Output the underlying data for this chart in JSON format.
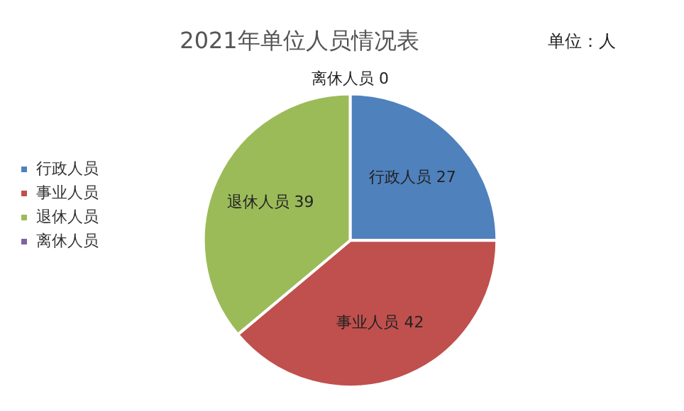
{
  "chart_data": {
    "type": "pie",
    "title": "2021年单位人员情况表",
    "annotations": [
      "单位：人"
    ],
    "categories": [
      "行政人员",
      "事业人员",
      "退休人员",
      "离休人员"
    ],
    "values": [
      27,
      42,
      39,
      0
    ],
    "colors": [
      "#4f81bd",
      "#c0504d",
      "#9bbb59",
      "#8064a2"
    ],
    "value_labels": [
      "27",
      "42",
      "39",
      "0"
    ],
    "legend": "left"
  }
}
